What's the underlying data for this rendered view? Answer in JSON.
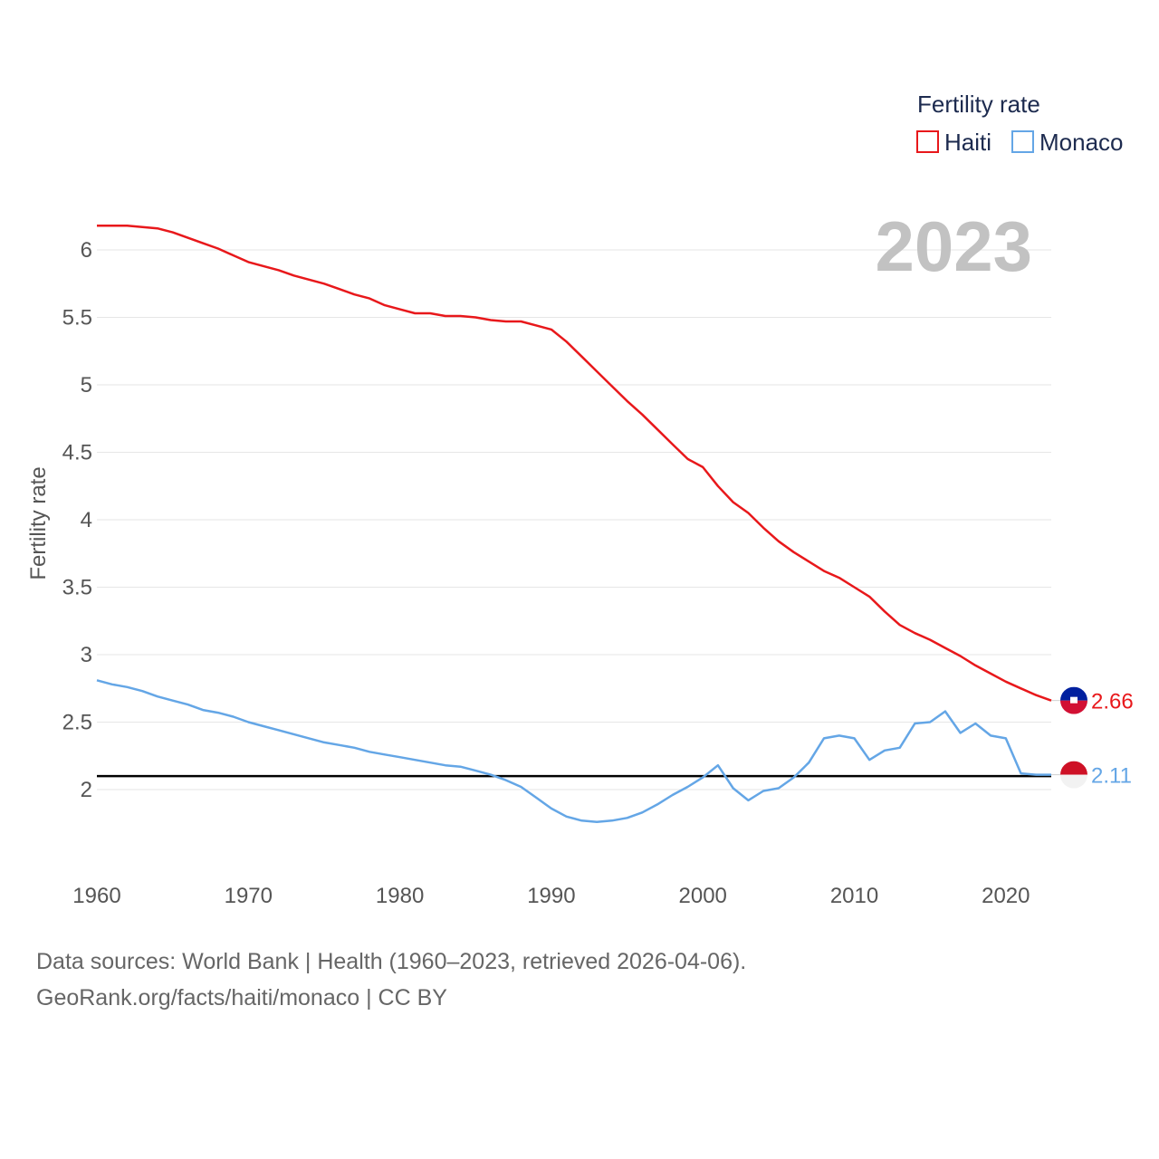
{
  "chart_data": {
    "type": "line",
    "title": "",
    "xlabel": "",
    "ylabel": "Fertility rate",
    "highlight_label": "2023",
    "legend_title": "Fertility rate",
    "xlim": [
      1960,
      2023
    ],
    "ylim": [
      1.4,
      6.4
    ],
    "x_ticks": [
      1960,
      1970,
      1980,
      1990,
      2000,
      2010,
      2020
    ],
    "y_ticks": [
      2,
      2.5,
      3,
      3.5,
      4,
      4.5,
      5,
      5.5,
      6
    ],
    "reference_line": 2.1,
    "x": [
      1960,
      1961,
      1962,
      1963,
      1964,
      1965,
      1966,
      1967,
      1968,
      1969,
      1970,
      1971,
      1972,
      1973,
      1974,
      1975,
      1976,
      1977,
      1978,
      1979,
      1980,
      1981,
      1982,
      1983,
      1984,
      1985,
      1986,
      1987,
      1988,
      1989,
      1990,
      1991,
      1992,
      1993,
      1994,
      1995,
      1996,
      1997,
      1998,
      1999,
      2000,
      2001,
      2002,
      2003,
      2004,
      2005,
      2006,
      2007,
      2008,
      2009,
      2010,
      2011,
      2012,
      2013,
      2014,
      2015,
      2016,
      2017,
      2018,
      2019,
      2020,
      2021,
      2022,
      2023
    ],
    "series": [
      {
        "name": "Haiti",
        "color": "#e8181b",
        "end_label": "2.66",
        "flag": "haiti-flag",
        "values": [
          6.18,
          6.18,
          6.18,
          6.17,
          6.16,
          6.13,
          6.09,
          6.05,
          6.01,
          5.96,
          5.91,
          5.88,
          5.85,
          5.81,
          5.78,
          5.75,
          5.71,
          5.67,
          5.64,
          5.59,
          5.56,
          5.53,
          5.53,
          5.51,
          5.51,
          5.5,
          5.48,
          5.47,
          5.47,
          5.44,
          5.41,
          5.32,
          5.21,
          5.1,
          4.99,
          4.88,
          4.78,
          4.67,
          4.56,
          4.45,
          4.39,
          4.25,
          4.13,
          4.05,
          3.94,
          3.84,
          3.76,
          3.69,
          3.62,
          3.57,
          3.5,
          3.43,
          3.32,
          3.22,
          3.16,
          3.11,
          3.05,
          2.99,
          2.92,
          2.86,
          2.8,
          2.75,
          2.7,
          2.66
        ]
      },
      {
        "name": "Monaco",
        "color": "#64a6e6",
        "end_label": "2.11",
        "flag": "monaco-flag",
        "values": [
          2.81,
          2.78,
          2.76,
          2.73,
          2.69,
          2.66,
          2.63,
          2.59,
          2.57,
          2.54,
          2.5,
          2.47,
          2.44,
          2.41,
          2.38,
          2.35,
          2.33,
          2.31,
          2.28,
          2.26,
          2.24,
          2.22,
          2.2,
          2.18,
          2.17,
          2.14,
          2.11,
          2.07,
          2.02,
          1.94,
          1.86,
          1.8,
          1.77,
          1.76,
          1.77,
          1.79,
          1.83,
          1.89,
          1.96,
          2.02,
          2.09,
          2.18,
          2.01,
          1.92,
          1.99,
          2.01,
          2.09,
          2.2,
          2.38,
          2.4,
          2.38,
          2.22,
          2.29,
          2.31,
          2.49,
          2.5,
          2.58,
          2.42,
          2.49,
          2.4,
          2.38,
          2.12,
          2.11,
          2.11
        ]
      }
    ]
  },
  "source": {
    "line1": "Data sources: World Bank | Health (1960–2023, retrieved 2026-04-06).",
    "line2": "GeoRank.org/facts/haiti/monaco | CC BY"
  }
}
